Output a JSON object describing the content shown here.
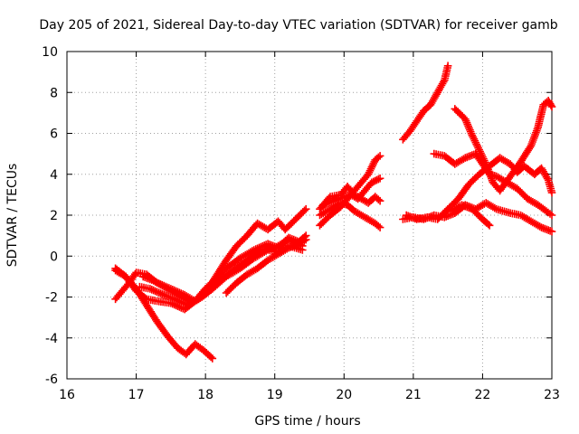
{
  "chart_data": {
    "type": "scatter",
    "title": "Day 205 of 2021, Sidereal Day-to-day VTEC variation (SDTVAR) for receiver gamb",
    "xlabel": "GPS time / hours",
    "ylabel": "SDTVAR / TECUs",
    "xlim": [
      16,
      23
    ],
    "ylim": [
      -6,
      10
    ],
    "xticks": [
      "16",
      "17",
      "18",
      "19",
      "20",
      "21",
      "22",
      "23"
    ],
    "yticks": [
      "-6",
      "-4",
      "-2",
      "0",
      "2",
      "4",
      "6",
      "8",
      "10"
    ],
    "grid": true,
    "marker": "+",
    "color": "#ff0000",
    "series": [
      {
        "points": [
          [
            16.7,
            -0.7
          ],
          [
            16.85,
            -1.0
          ],
          [
            17.0,
            -1.6
          ],
          [
            17.15,
            -2.4
          ],
          [
            17.3,
            -3.2
          ],
          [
            17.45,
            -3.9
          ],
          [
            17.6,
            -4.5
          ],
          [
            17.72,
            -4.8
          ],
          [
            17.85,
            -4.3
          ],
          [
            17.97,
            -4.6
          ],
          [
            18.1,
            -5.0
          ]
        ]
      },
      {
        "points": [
          [
            16.7,
            -2.1
          ],
          [
            16.8,
            -1.7
          ],
          [
            16.9,
            -1.3
          ],
          [
            17.0,
            -0.8
          ],
          [
            17.15,
            -0.9
          ],
          [
            17.3,
            -1.3
          ],
          [
            17.5,
            -1.6
          ],
          [
            17.7,
            -1.9
          ],
          [
            17.85,
            -2.2
          ],
          [
            18.0,
            -1.8
          ],
          [
            18.15,
            -1.0
          ],
          [
            18.3,
            -0.2
          ],
          [
            18.45,
            0.5
          ],
          [
            18.6,
            1.0
          ],
          [
            18.75,
            1.6
          ],
          [
            18.9,
            1.3
          ],
          [
            19.05,
            1.7
          ],
          [
            19.15,
            1.3
          ],
          [
            19.3,
            1.8
          ],
          [
            19.45,
            2.3
          ]
        ]
      },
      {
        "points": [
          [
            16.7,
            -0.6
          ],
          [
            16.85,
            -1.0
          ],
          [
            17.0,
            -1.7
          ],
          [
            17.15,
            -2.1
          ],
          [
            17.3,
            -2.2
          ],
          [
            17.5,
            -2.3
          ],
          [
            17.7,
            -2.6
          ],
          [
            17.85,
            -2.2
          ],
          [
            18.0,
            -1.6
          ],
          [
            18.15,
            -1.1
          ],
          [
            18.3,
            -0.6
          ],
          [
            18.5,
            -0.1
          ],
          [
            18.7,
            0.3
          ],
          [
            18.9,
            0.6
          ],
          [
            19.05,
            0.4
          ],
          [
            19.2,
            0.9
          ],
          [
            19.35,
            0.7
          ],
          [
            19.45,
            1.0
          ]
        ]
      },
      {
        "points": [
          [
            17.05,
            -1.5
          ],
          [
            17.2,
            -1.6
          ],
          [
            17.4,
            -1.9
          ],
          [
            17.55,
            -2.1
          ],
          [
            17.75,
            -2.4
          ],
          [
            17.9,
            -2.1
          ],
          [
            18.05,
            -1.7
          ],
          [
            18.2,
            -1.2
          ],
          [
            18.4,
            -0.7
          ],
          [
            18.6,
            -0.2
          ],
          [
            18.8,
            0.3
          ],
          [
            19.0,
            0.4
          ],
          [
            19.2,
            0.8
          ],
          [
            19.4,
            0.5
          ]
        ]
      },
      {
        "points": [
          [
            17.1,
            -1.0
          ],
          [
            17.25,
            -1.2
          ],
          [
            17.45,
            -1.6
          ],
          [
            17.6,
            -1.9
          ],
          [
            17.8,
            -2.3
          ],
          [
            17.95,
            -2.0
          ],
          [
            18.1,
            -1.6
          ],
          [
            18.3,
            -1.0
          ],
          [
            18.5,
            -0.6
          ],
          [
            18.7,
            -0.1
          ],
          [
            18.9,
            0.3
          ],
          [
            19.05,
            0.2
          ],
          [
            19.2,
            0.5
          ],
          [
            19.4,
            0.3
          ]
        ]
      },
      {
        "points": [
          [
            18.3,
            -1.8
          ],
          [
            18.45,
            -1.3
          ],
          [
            18.6,
            -0.9
          ],
          [
            18.75,
            -0.6
          ],
          [
            18.9,
            -0.2
          ],
          [
            19.05,
            0.1
          ],
          [
            19.2,
            0.4
          ],
          [
            19.35,
            0.6
          ],
          [
            19.45,
            0.8
          ]
        ]
      },
      {
        "points": [
          [
            19.65,
            2.3
          ],
          [
            19.8,
            2.9
          ],
          [
            19.95,
            3.0
          ],
          [
            20.05,
            3.4
          ],
          [
            20.15,
            3.0
          ],
          [
            20.25,
            2.8
          ],
          [
            20.35,
            2.6
          ],
          [
            20.45,
            2.9
          ],
          [
            20.52,
            2.7
          ]
        ]
      },
      {
        "points": [
          [
            19.65,
            2.0
          ],
          [
            19.8,
            2.3
          ],
          [
            19.95,
            2.6
          ],
          [
            20.05,
            2.5
          ],
          [
            20.15,
            2.2
          ],
          [
            20.25,
            2.0
          ],
          [
            20.35,
            1.8
          ],
          [
            20.45,
            1.6
          ],
          [
            20.52,
            1.4
          ]
        ]
      },
      {
        "points": [
          [
            19.65,
            1.5
          ],
          [
            19.8,
            2.0
          ],
          [
            19.95,
            2.4
          ],
          [
            20.05,
            2.8
          ],
          [
            20.15,
            3.2
          ],
          [
            20.25,
            3.6
          ],
          [
            20.35,
            4.0
          ],
          [
            20.45,
            4.7
          ],
          [
            20.52,
            4.9
          ]
        ]
      },
      {
        "points": [
          [
            19.7,
            2.5
          ],
          [
            19.85,
            2.7
          ],
          [
            20.0,
            2.9
          ],
          [
            20.1,
            3.0
          ],
          [
            20.2,
            2.8
          ],
          [
            20.3,
            3.2
          ],
          [
            20.4,
            3.6
          ],
          [
            20.52,
            3.8
          ]
        ]
      },
      {
        "points": [
          [
            20.85,
            5.7
          ],
          [
            20.95,
            6.1
          ],
          [
            21.05,
            6.6
          ],
          [
            21.15,
            7.1
          ],
          [
            21.25,
            7.4
          ],
          [
            21.35,
            8.0
          ],
          [
            21.45,
            8.6
          ],
          [
            21.5,
            9.3
          ]
        ]
      },
      {
        "points": [
          [
            20.85,
            1.8
          ],
          [
            21.0,
            1.9
          ],
          [
            21.15,
            1.8
          ],
          [
            21.3,
            2.0
          ],
          [
            21.45,
            1.9
          ],
          [
            21.6,
            2.1
          ],
          [
            21.75,
            2.5
          ],
          [
            21.9,
            2.3
          ],
          [
            22.05,
            2.6
          ],
          [
            22.2,
            2.3
          ],
          [
            22.4,
            2.1
          ],
          [
            22.55,
            2.0
          ],
          [
            22.7,
            1.7
          ],
          [
            22.85,
            1.4
          ],
          [
            23.0,
            1.2
          ]
        ]
      },
      {
        "points": [
          [
            20.9,
            2.0
          ],
          [
            21.05,
            1.8
          ],
          [
            21.2,
            1.9
          ],
          [
            21.35,
            1.8
          ],
          [
            21.5,
            2.3
          ],
          [
            21.65,
            2.8
          ],
          [
            21.8,
            3.5
          ],
          [
            21.95,
            4.0
          ],
          [
            22.1,
            4.4
          ],
          [
            22.25,
            4.8
          ],
          [
            22.4,
            4.5
          ],
          [
            22.5,
            4.1
          ],
          [
            22.6,
            4.4
          ],
          [
            22.75,
            4.0
          ],
          [
            22.85,
            4.3
          ],
          [
            22.95,
            3.7
          ],
          [
            23.0,
            3.1
          ]
        ]
      },
      {
        "points": [
          [
            21.3,
            5.0
          ],
          [
            21.45,
            4.9
          ],
          [
            21.6,
            4.5
          ],
          [
            21.75,
            4.8
          ],
          [
            21.9,
            5.0
          ],
          [
            22.0,
            4.5
          ],
          [
            22.1,
            4.0
          ],
          [
            22.2,
            3.9
          ],
          [
            22.35,
            3.6
          ],
          [
            22.5,
            3.3
          ],
          [
            22.65,
            2.8
          ],
          [
            22.8,
            2.5
          ],
          [
            22.92,
            2.2
          ],
          [
            23.0,
            2.0
          ]
        ]
      },
      {
        "points": [
          [
            21.6,
            7.2
          ],
          [
            21.75,
            6.7
          ],
          [
            21.85,
            5.9
          ],
          [
            21.95,
            5.2
          ],
          [
            22.05,
            4.5
          ],
          [
            22.15,
            3.6
          ],
          [
            22.25,
            3.2
          ],
          [
            22.4,
            3.9
          ],
          [
            22.55,
            4.6
          ],
          [
            22.7,
            5.4
          ],
          [
            22.8,
            6.3
          ],
          [
            22.88,
            7.4
          ],
          [
            22.95,
            7.6
          ],
          [
            23.0,
            7.3
          ]
        ]
      },
      {
        "points": [
          [
            21.55,
            2.2
          ],
          [
            21.7,
            2.5
          ],
          [
            21.85,
            2.3
          ],
          [
            22.0,
            1.8
          ],
          [
            22.1,
            1.5
          ]
        ]
      }
    ]
  }
}
